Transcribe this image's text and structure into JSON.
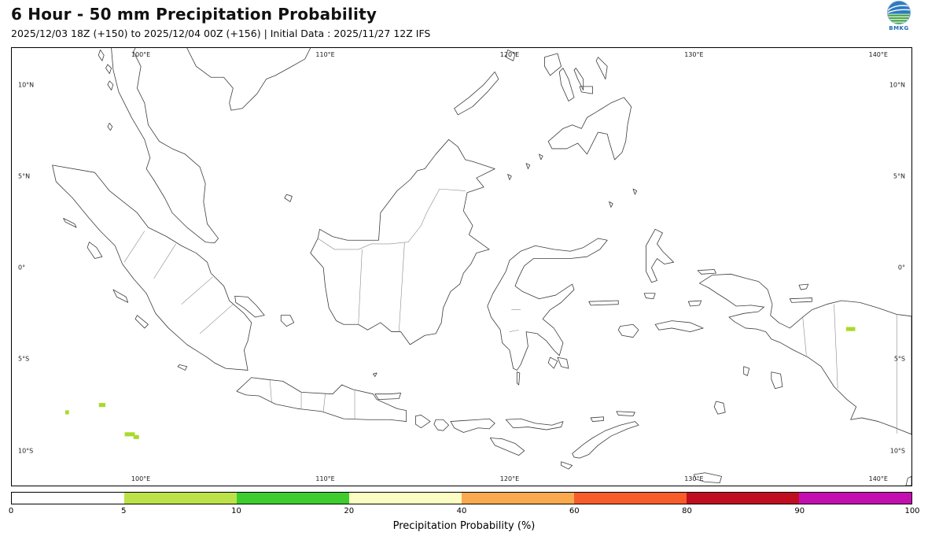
{
  "header": {
    "title": "6 Hour - 50 mm Precipitation Probability",
    "subtitle": "2025/12/03 18Z (+150) to 2025/12/04 00Z (+156) | Initial Data : 2025/11/27 12Z IFS",
    "logo_text": "BMKG"
  },
  "map": {
    "lon_labels": [
      "100°E",
      "110°E",
      "120°E",
      "130°E",
      "140°E"
    ],
    "lat_labels": [
      "10°N",
      "5°N",
      "0°",
      "5°S",
      "10°S"
    ],
    "probability_spots": [
      {
        "lon": 96.0,
        "lat": -7.9,
        "width_deg": 0.2,
        "value_pct": "5-10",
        "color": "#a9d92b"
      },
      {
        "lon": 97.9,
        "lat": -7.5,
        "width_deg": 0.35,
        "value_pct": "5-10",
        "color": "#a9d92b"
      },
      {
        "lon": 99.4,
        "lat": -9.1,
        "width_deg": 0.55,
        "value_pct": "5-10",
        "color": "#a9d92b"
      },
      {
        "lon": 99.75,
        "lat": -9.25,
        "width_deg": 0.3,
        "value_pct": "5-10",
        "color": "#a9d92b"
      },
      {
        "lon": 138.5,
        "lat": -3.35,
        "width_deg": 0.5,
        "value_pct": "5-10",
        "color": "#a9d92b"
      }
    ]
  },
  "colorbar": {
    "label": "Precipitation Probability (%)",
    "tick_labels": [
      "0",
      "5",
      "10",
      "20",
      "40",
      "60",
      "80",
      "90",
      "100"
    ],
    "segments": [
      {
        "range": "0-5",
        "color": "#ffffff"
      },
      {
        "range": "5-10",
        "color": "#bce24a"
      },
      {
        "range": "10-20",
        "color": "#3ecc2e"
      },
      {
        "range": "20-40",
        "color": "#fcfdc2"
      },
      {
        "range": "40-60",
        "color": "#fba94e"
      },
      {
        "range": "60-80",
        "color": "#f75c2b"
      },
      {
        "range": "80-90",
        "color": "#c00d20"
      },
      {
        "range": "90-100",
        "color": "#c40fb0"
      }
    ]
  }
}
